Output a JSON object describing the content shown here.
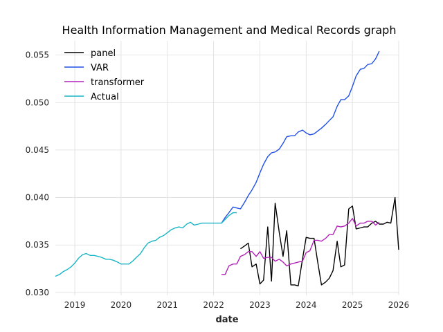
{
  "chart_data": {
    "type": "line",
    "title": "Health Information Management and Medical Records graph",
    "xlabel": "date",
    "ylabel": "",
    "xlim": [
      2018.58,
      2026.0
    ],
    "ylim": [
      0.0297,
      0.0565
    ],
    "x_ticks": [
      "2019",
      "2020",
      "2021",
      "2022",
      "2023",
      "2024",
      "2025",
      "2026"
    ],
    "y_ticks": [
      "0.030",
      "0.035",
      "0.040",
      "0.045",
      "0.050",
      "0.055"
    ],
    "grid": true,
    "legend_position": "top-left",
    "series": [
      {
        "name": "panel",
        "color": "#000000",
        "x": [
          2022.58,
          2022.67,
          2022.75,
          2022.83,
          2022.92,
          2023.0,
          2023.08,
          2023.17,
          2023.25,
          2023.33,
          2023.42,
          2023.5,
          2023.58,
          2023.67,
          2023.75,
          2023.83,
          2023.92,
          2024.0,
          2024.08,
          2024.17,
          2024.25,
          2024.33,
          2024.42,
          2024.5,
          2024.58,
          2024.67,
          2024.75,
          2024.83,
          2024.92,
          2025.0,
          2025.08,
          2025.17,
          2025.25,
          2025.33,
          2025.42,
          2025.5,
          2025.58,
          2025.67,
          2025.75,
          2025.83,
          2025.92,
          2026.0
        ],
        "y": [
          0.0346,
          0.0349,
          0.0352,
          0.0327,
          0.033,
          0.0309,
          0.0313,
          0.0369,
          0.0312,
          0.0394,
          0.0363,
          0.0338,
          0.0365,
          0.0308,
          0.0308,
          0.0307,
          0.0335,
          0.0358,
          0.0357,
          0.0357,
          0.0332,
          0.0308,
          0.0311,
          0.0315,
          0.0323,
          0.0354,
          0.0327,
          0.0329,
          0.0388,
          0.0391,
          0.0367,
          0.0368,
          0.0369,
          0.0369,
          0.0373,
          0.0375,
          0.0372,
          0.0372,
          0.0374,
          0.0373,
          0.04,
          0.0345
        ]
      },
      {
        "name": "VAR",
        "color": "#1f4fe6",
        "x": [
          2022.17,
          2022.25,
          2022.33,
          2022.42,
          2022.5,
          2022.58,
          2022.67,
          2022.75,
          2022.83,
          2022.92,
          2023.0,
          2023.08,
          2023.17,
          2023.25,
          2023.33,
          2023.42,
          2023.5,
          2023.58,
          2023.67,
          2023.75,
          2023.83,
          2023.92,
          2024.0,
          2024.08,
          2024.17,
          2024.25,
          2024.33,
          2024.42,
          2024.5,
          2024.58,
          2024.67,
          2024.75,
          2024.83,
          2024.92,
          2025.0,
          2025.08,
          2025.17,
          2025.25,
          2025.33,
          2025.42,
          2025.5,
          2025.58
        ],
        "y": [
          0.0373,
          0.0379,
          0.0384,
          0.039,
          0.0389,
          0.0388,
          0.0395,
          0.0402,
          0.0408,
          0.0416,
          0.0426,
          0.0435,
          0.0443,
          0.0447,
          0.0448,
          0.0451,
          0.0457,
          0.0464,
          0.0465,
          0.0465,
          0.0469,
          0.0471,
          0.0468,
          0.0466,
          0.0467,
          0.047,
          0.0473,
          0.0477,
          0.0481,
          0.0485,
          0.0496,
          0.0503,
          0.0503,
          0.0507,
          0.0517,
          0.0528,
          0.0535,
          0.0536,
          0.054,
          0.0541,
          0.0546,
          0.0554
        ]
      },
      {
        "name": "transformer",
        "color": "#b221b8",
        "x": [
          2022.17,
          2022.25,
          2022.33,
          2022.42,
          2022.5,
          2022.58,
          2022.67,
          2022.75,
          2022.83,
          2022.92,
          2023.0,
          2023.08,
          2023.17,
          2023.25,
          2023.33,
          2023.42,
          2023.5,
          2023.58,
          2023.67,
          2023.75,
          2023.83,
          2023.92,
          2024.0,
          2024.08,
          2024.17,
          2024.25,
          2024.33,
          2024.42,
          2024.5,
          2024.58,
          2024.67,
          2024.75,
          2024.83,
          2024.92,
          2025.0,
          2025.08,
          2025.17,
          2025.25,
          2025.33,
          2025.42,
          2025.5,
          2025.58
        ],
        "y": [
          0.0319,
          0.0319,
          0.0328,
          0.033,
          0.033,
          0.0338,
          0.034,
          0.0343,
          0.0343,
          0.0338,
          0.0343,
          0.0336,
          0.0337,
          0.0337,
          0.0333,
          0.0335,
          0.0332,
          0.0328,
          0.033,
          0.0331,
          0.0332,
          0.0333,
          0.0342,
          0.0344,
          0.0355,
          0.0355,
          0.0354,
          0.0357,
          0.0361,
          0.0361,
          0.037,
          0.0369,
          0.037,
          0.0373,
          0.0378,
          0.037,
          0.0373,
          0.0373,
          0.0375,
          0.0375,
          0.0371,
          0.0374
        ]
      },
      {
        "name": "Actual",
        "color": "#17b5c5",
        "x": [
          2018.58,
          2018.67,
          2018.75,
          2018.83,
          2018.92,
          2019.0,
          2019.08,
          2019.17,
          2019.25,
          2019.33,
          2019.42,
          2019.5,
          2019.58,
          2019.67,
          2019.75,
          2019.83,
          2019.92,
          2020.0,
          2020.08,
          2020.17,
          2020.25,
          2020.33,
          2020.42,
          2020.5,
          2020.58,
          2020.67,
          2020.75,
          2020.83,
          2020.92,
          2021.0,
          2021.08,
          2021.17,
          2021.25,
          2021.33,
          2021.42,
          2021.5,
          2021.58,
          2021.67,
          2021.75,
          2021.83,
          2021.92,
          2022.0,
          2022.08,
          2022.17,
          2022.25,
          2022.33,
          2022.42,
          2022.5
        ],
        "y": [
          0.0317,
          0.0319,
          0.0322,
          0.0324,
          0.0327,
          0.0331,
          0.0336,
          0.034,
          0.0341,
          0.0339,
          0.0339,
          0.0338,
          0.0337,
          0.0335,
          0.0335,
          0.0334,
          0.0332,
          0.033,
          0.033,
          0.033,
          0.0333,
          0.0337,
          0.0341,
          0.0347,
          0.0352,
          0.0354,
          0.0355,
          0.0358,
          0.036,
          0.0363,
          0.0366,
          0.0368,
          0.0369,
          0.0368,
          0.0372,
          0.0374,
          0.0371,
          0.0372,
          0.0373,
          0.0373,
          0.0373,
          0.0373,
          0.0373,
          0.0373,
          0.0377,
          0.0381,
          0.0384,
          0.0384
        ]
      }
    ]
  }
}
